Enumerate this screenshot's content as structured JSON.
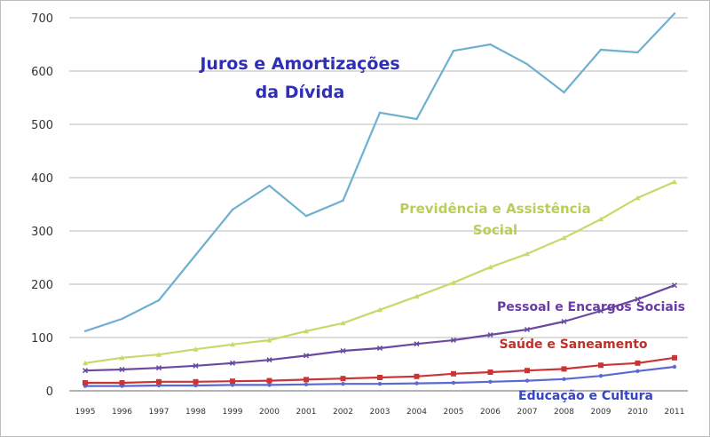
{
  "chart_data": {
    "type": "line",
    "x": [
      "1995",
      "1996",
      "1997",
      "1998",
      "1999",
      "2000",
      "2001",
      "2002",
      "2003",
      "2004",
      "2005",
      "2006",
      "2007",
      "2008",
      "2009",
      "2010",
      "2011"
    ],
    "ylim": [
      0,
      720
    ],
    "yticks": [
      "0",
      "100",
      "200",
      "300",
      "400",
      "500",
      "600",
      "700"
    ],
    "grid": true,
    "legend": "none",
    "series": [
      {
        "name": "Juros e Amortizações da Dívida",
        "color": "#6fb0d0",
        "values": [
          112,
          135,
          170,
          255,
          340,
          385,
          328,
          357,
          522,
          510,
          638,
          650,
          613,
          560,
          640,
          635,
          708
        ]
      },
      {
        "name": "Previdência e Assistência Social",
        "color": "#c8d86a",
        "values": [
          52,
          62,
          68,
          78,
          87,
          95,
          112,
          127,
          152,
          177,
          203,
          232,
          257,
          287,
          322,
          362,
          392
        ]
      },
      {
        "name": "Pessoal e Encargos Sociais",
        "color": "#6a4aa0",
        "values": [
          38,
          40,
          43,
          47,
          52,
          58,
          66,
          75,
          80,
          88,
          95,
          105,
          115,
          130,
          150,
          172,
          198
        ]
      },
      {
        "name": "Saúde e Saneamento",
        "color": "#cc3333",
        "values": [
          15,
          15,
          17,
          17,
          18,
          19,
          21,
          23,
          25,
          27,
          32,
          35,
          38,
          41,
          48,
          52,
          62
        ]
      },
      {
        "name": "Educação e Cultura",
        "color": "#5a6ad0",
        "values": [
          9,
          9,
          10,
          10,
          11,
          11,
          12,
          13,
          13,
          14,
          15,
          17,
          19,
          22,
          28,
          37,
          45
        ]
      }
    ],
    "annotations": [
      {
        "lines": [
          "Juros e Amortizações",
          "da Dívida"
        ],
        "color": "#2e2eb8"
      },
      {
        "lines": [
          "Previdência e Assistência",
          "Social"
        ],
        "color": "#b7cf5a"
      },
      {
        "lines": [
          "Pessoal e Encargos Sociais"
        ],
        "color": "#6a3aa8"
      },
      {
        "lines": [
          "Saúde e Saneamento"
        ],
        "color": "#c0302a"
      },
      {
        "lines": [
          "Educação e Cultura"
        ],
        "color": "#3545c8"
      }
    ]
  }
}
